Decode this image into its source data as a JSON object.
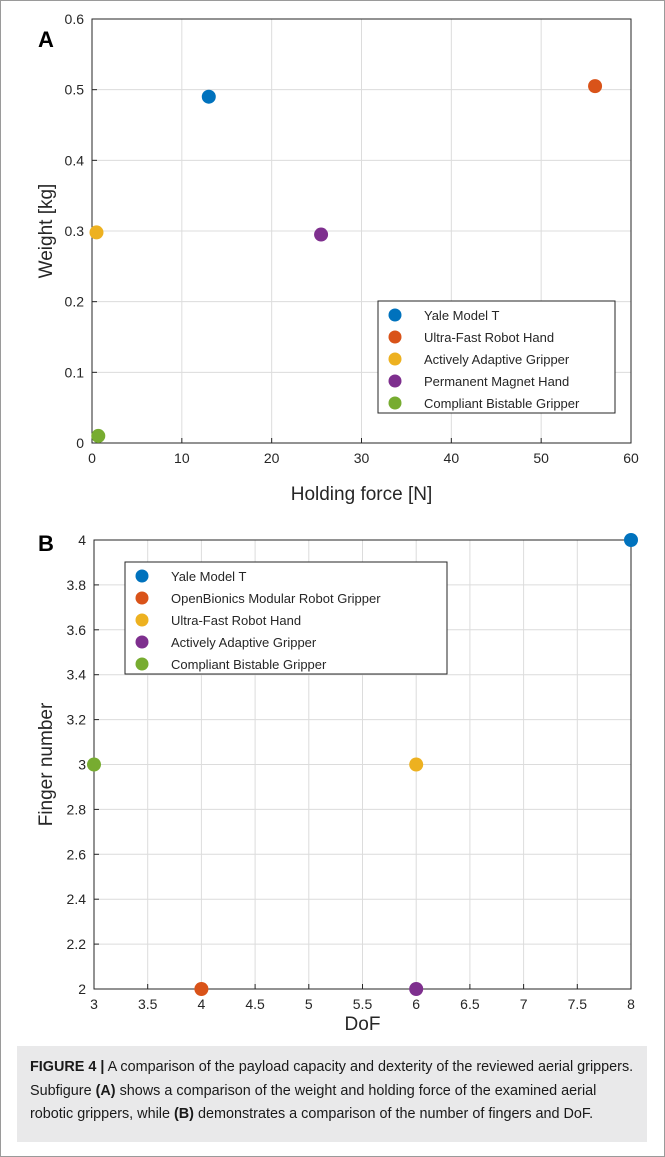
{
  "chart_data": [
    {
      "panel": "A",
      "type": "scatter",
      "xlabel": "Holding force [N]",
      "ylabel": "Weight [kg]",
      "xlim": [
        0,
        60
      ],
      "ylim": [
        0,
        0.6
      ],
      "xticks": [
        "0",
        "10",
        "20",
        "30",
        "40",
        "50",
        "60"
      ],
      "yticks": [
        "0",
        "0.1",
        "0.2",
        "0.3",
        "0.4",
        "0.5",
        "0.6"
      ],
      "grid": true,
      "legend_position": "bottom-right",
      "series": [
        {
          "name": "Yale Model T",
          "color": "#0072bd",
          "x": 13,
          "y": 0.49
        },
        {
          "name": "Ultra-Fast Robot Hand",
          "color": "#d95319",
          "x": 56,
          "y": 0.505
        },
        {
          "name": "Actively Adaptive Gripper",
          "color": "#edb120",
          "x": 0.5,
          "y": 0.298
        },
        {
          "name": "Permanent Magnet Hand",
          "color": "#7e2f8e",
          "x": 25.5,
          "y": 0.295
        },
        {
          "name": "Compliant Bistable Gripper",
          "color": "#77ac30",
          "x": 0.7,
          "y": 0.01
        }
      ]
    },
    {
      "panel": "B",
      "type": "scatter",
      "xlabel": "DoF",
      "ylabel": "Finger number",
      "xlim": [
        3,
        8
      ],
      "ylim": [
        2,
        4
      ],
      "xticks": [
        "3",
        "3.5",
        "4",
        "4.5",
        "5",
        "5.5",
        "6",
        "6.5",
        "7",
        "7.5",
        "8"
      ],
      "yticks": [
        "2",
        "2.2",
        "2.4",
        "2.6",
        "2.8",
        "3",
        "3.2",
        "3.4",
        "3.6",
        "3.8",
        "4"
      ],
      "grid": true,
      "legend_position": "top-left",
      "series": [
        {
          "name": "Yale Model T",
          "color": "#0072bd",
          "x": 8,
          "y": 4
        },
        {
          "name": "OpenBionics Modular Robot Gripper",
          "color": "#d95319",
          "x": 4,
          "y": 2
        },
        {
          "name": "Ultra-Fast Robot Hand",
          "color": "#edb120",
          "x": 6,
          "y": 3
        },
        {
          "name": "Actively Adaptive Gripper",
          "color": "#7e2f8e",
          "x": 6,
          "y": 2
        },
        {
          "name": "Compliant Bistable Gripper",
          "color": "#77ac30",
          "x": 3,
          "y": 3
        }
      ]
    }
  ],
  "caption": {
    "label": "FIGURE 4 |",
    "part1": " A comparison of the payload capacity and dexterity of the reviewed aerial grippers. Subfigure ",
    "refA": "(A)",
    "part2": " shows a comparison of the weight and holding force of the examined aerial robotic grippers, while ",
    "refB": "(B)",
    "part3": " demonstrates a comparison of the number of fingers and DoF."
  }
}
